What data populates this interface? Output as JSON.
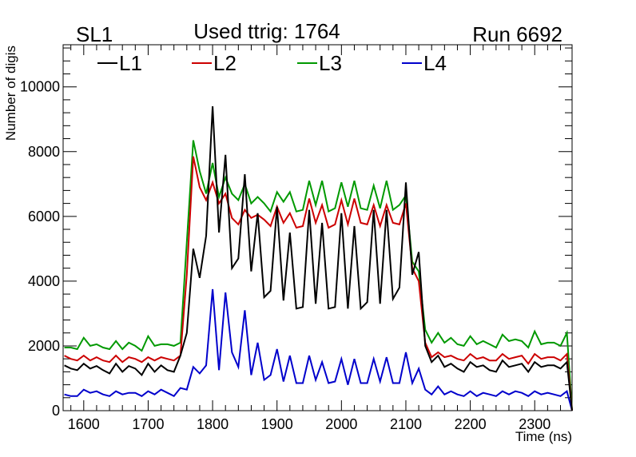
{
  "header": {
    "left_label": "SL1",
    "center_label": "Used ttrig: 1764",
    "right_label": "Run 6692"
  },
  "colors": {
    "L1": "#000000",
    "L2": "#cc0000",
    "L3": "#009900",
    "L4": "#0000cc"
  },
  "chart_data": {
    "type": "line",
    "xlabel": "Time (ns)",
    "ylabel": "Number of digis",
    "xlim": [
      1568,
      2358
    ],
    "ylim": [
      0,
      11300
    ],
    "xticks": [
      1600,
      1700,
      1800,
      1900,
      2000,
      2100,
      2200,
      2300
    ],
    "yticks": [
      0,
      2000,
      4000,
      6000,
      8000,
      10000
    ],
    "legend_position": "top",
    "x": [
      1570,
      1580,
      1590,
      1600,
      1610,
      1620,
      1630,
      1640,
      1650,
      1660,
      1670,
      1680,
      1690,
      1700,
      1710,
      1720,
      1730,
      1740,
      1750,
      1760,
      1770,
      1780,
      1790,
      1800,
      1810,
      1820,
      1830,
      1840,
      1850,
      1860,
      1870,
      1880,
      1890,
      1900,
      1910,
      1920,
      1930,
      1940,
      1950,
      1960,
      1970,
      1980,
      1990,
      2000,
      2010,
      2020,
      2030,
      2040,
      2050,
      2060,
      2070,
      2080,
      2090,
      2100,
      2110,
      2120,
      2130,
      2140,
      2150,
      2160,
      2170,
      2180,
      2190,
      2200,
      2210,
      2220,
      2230,
      2240,
      2250,
      2260,
      2270,
      2280,
      2290,
      2300,
      2310,
      2320,
      2330,
      2340,
      2350,
      2360
    ],
    "series": [
      {
        "name": "L1",
        "values": [
          1400,
          1300,
          1250,
          1450,
          1300,
          1380,
          1250,
          1150,
          1450,
          1200,
          1380,
          1300,
          1100,
          1450,
          1200,
          1400,
          1250,
          1200,
          1700,
          2400,
          5000,
          4100,
          5400,
          9400,
          5500,
          7900,
          4400,
          4700,
          7300,
          4300,
          6100,
          3500,
          3700,
          6300,
          3400,
          5500,
          3150,
          3200,
          6200,
          3300,
          5800,
          3150,
          3200,
          6100,
          3150,
          5700,
          3150,
          3350,
          6200,
          3300,
          6200,
          3450,
          3800,
          7050,
          4200,
          4900,
          2000,
          1500,
          1700,
          1350,
          1450,
          1300,
          1200,
          1500,
          1350,
          1400,
          1250,
          1200,
          1550,
          1350,
          1400,
          1450,
          1200,
          1500,
          1350,
          1400,
          1400,
          1300,
          1500,
          0
        ]
      },
      {
        "name": "L2",
        "values": [
          1700,
          1600,
          1550,
          1700,
          1550,
          1650,
          1550,
          1500,
          1700,
          1500,
          1650,
          1600,
          1500,
          1650,
          1550,
          1650,
          1600,
          1550,
          1700,
          4200,
          7850,
          6900,
          6500,
          7050,
          6400,
          6700,
          5950,
          5750,
          6200,
          5950,
          6050,
          5900,
          5700,
          6300,
          5800,
          6100,
          5650,
          5700,
          6550,
          5800,
          6350,
          5650,
          5750,
          6500,
          5750,
          6550,
          5800,
          5750,
          6350,
          5700,
          6350,
          5800,
          5750,
          6400,
          4400,
          4000,
          2100,
          1650,
          1800,
          1650,
          1700,
          1600,
          1550,
          1750,
          1600,
          1650,
          1550,
          1550,
          1750,
          1600,
          1650,
          1700,
          1450,
          1750,
          1600,
          1650,
          1650,
          1550,
          1750,
          0
        ]
      },
      {
        "name": "L3",
        "values": [
          1950,
          1950,
          1900,
          2250,
          2000,
          2050,
          1950,
          1900,
          2150,
          1900,
          2100,
          2000,
          1850,
          2300,
          2000,
          2050,
          2050,
          2000,
          2100,
          5200,
          8350,
          7400,
          6700,
          7650,
          6600,
          7200,
          6700,
          6500,
          7000,
          6400,
          6600,
          6400,
          6150,
          6750,
          6450,
          6750,
          6150,
          6200,
          7100,
          6350,
          7100,
          6150,
          6250,
          7050,
          6300,
          7100,
          6250,
          6200,
          6950,
          6250,
          7100,
          6200,
          6350,
          6650,
          4600,
          4300,
          2500,
          2100,
          2400,
          2100,
          2250,
          2050,
          2000,
          2300,
          2050,
          2150,
          2050,
          1950,
          2350,
          2150,
          2200,
          2150,
          1950,
          2450,
          2050,
          2100,
          2100,
          2000,
          2400,
          0
        ]
      },
      {
        "name": "L4",
        "values": [
          500,
          450,
          450,
          650,
          550,
          600,
          500,
          450,
          600,
          500,
          550,
          550,
          450,
          600,
          500,
          650,
          550,
          450,
          700,
          650,
          1350,
          1150,
          1400,
          3750,
          1250,
          3650,
          1800,
          1350,
          3100,
          1100,
          2100,
          950,
          1100,
          1900,
          900,
          1700,
          850,
          850,
          1700,
          950,
          1500,
          850,
          900,
          1600,
          800,
          1600,
          850,
          850,
          1600,
          900,
          1650,
          850,
          850,
          1800,
          850,
          1300,
          650,
          500,
          750,
          500,
          600,
          500,
          450,
          600,
          450,
          550,
          500,
          450,
          600,
          500,
          600,
          550,
          450,
          600,
          500,
          550,
          500,
          450,
          600,
          0
        ]
      }
    ]
  }
}
